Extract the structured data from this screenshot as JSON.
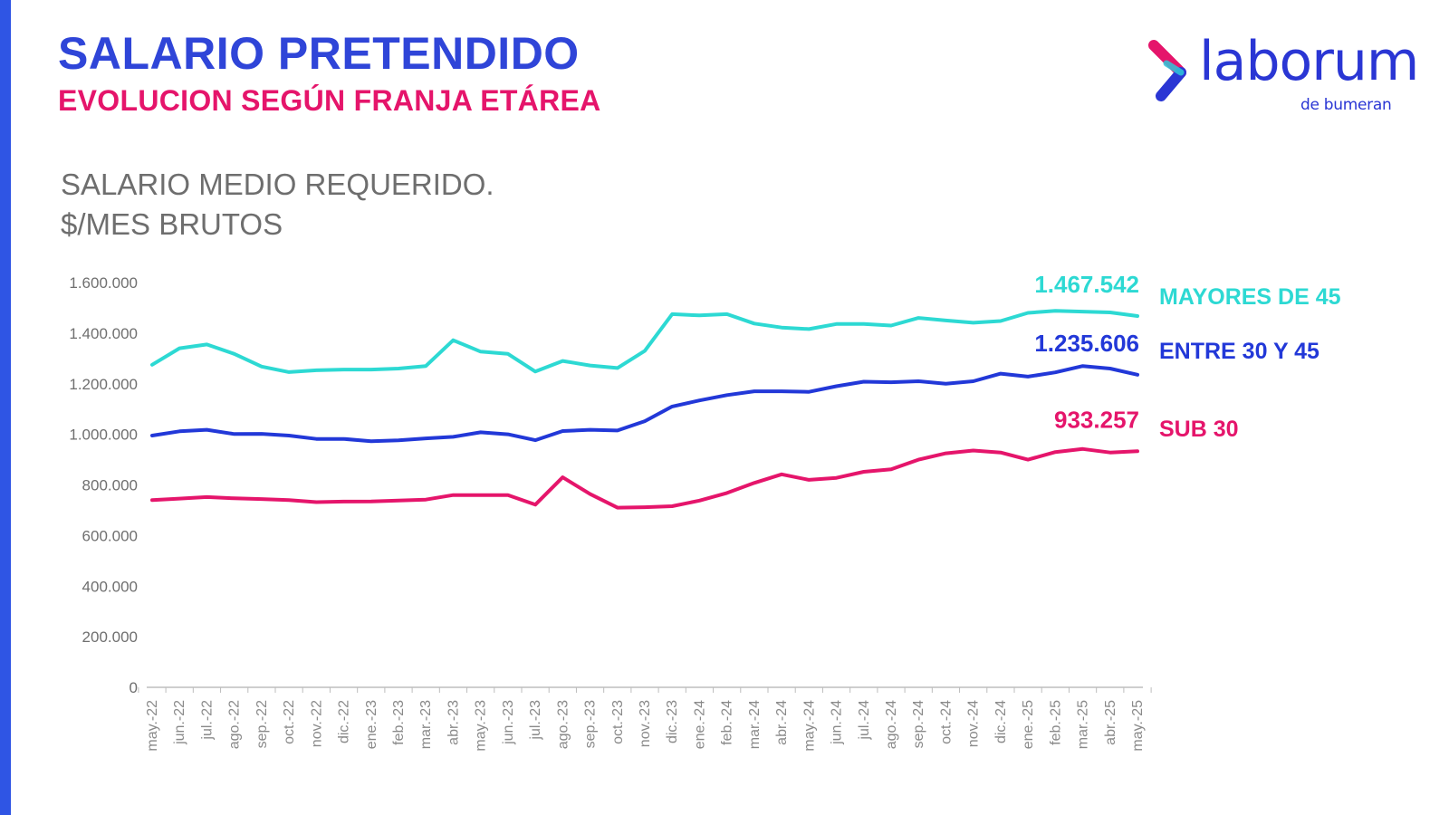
{
  "header": {
    "title": "SALARIO PRETENDIDO",
    "subtitle": "EVOLUCION SEGÚN FRANJA ETÁREA"
  },
  "logo": {
    "word": "laborum",
    "sub": "de bumeran",
    "icon": "chevron-logo-icon",
    "colors": [
      "#e5156b",
      "#2a36d4",
      "#2ec8d9"
    ]
  },
  "colors": {
    "accent_bar": "#2f55e4",
    "title": "#2f45d8",
    "subtitle": "#e5156b"
  },
  "chart_data": {
    "type": "line",
    "title": "SALARIO MEDIO REQUERIDO.",
    "subtitle": "$/MES BRUTOS",
    "xlabel": "",
    "ylabel": "",
    "ylim": [
      0,
      1600000
    ],
    "yticks": [
      0,
      200000,
      400000,
      600000,
      800000,
      1000000,
      1200000,
      1400000,
      1600000
    ],
    "ytick_labels": [
      "0",
      "200.000",
      "400.000",
      "600.000",
      "800.000",
      "1.000.000",
      "1.200.000",
      "1.400.000",
      "1.600.000"
    ],
    "grid": false,
    "legend": "right, at line ends",
    "categories": [
      "may.-22",
      "jun.-22",
      "jul.-22",
      "ago.-22",
      "sep.-22",
      "oct.-22",
      "nov.-22",
      "dic.-22",
      "ene.-23",
      "feb.-23",
      "mar.-23",
      "abr.-23",
      "may.-23",
      "jun.-23",
      "jul.-23",
      "ago.-23",
      "sep.-23",
      "oct.-23",
      "nov.-23",
      "dic.-23",
      "ene.-24",
      "feb.-24",
      "mar.-24",
      "abr.-24",
      "may.-24",
      "jun.-24",
      "jul.-24",
      "ago.-24",
      "sep.-24",
      "oct.-24",
      "nov.-24",
      "dic.-24",
      "ene.-25",
      "feb.-25",
      "mar.-25",
      "abr.-25",
      "may.-25"
    ],
    "series": [
      {
        "name": "MAYORES DE 45",
        "color": "#2dd9d3",
        "end_label": "1.467.542",
        "values": [
          1275000,
          1340000,
          1355000,
          1318000,
          1268000,
          1246000,
          1253000,
          1256000,
          1256000,
          1260000,
          1270000,
          1372000,
          1327000,
          1318000,
          1248000,
          1290000,
          1272000,
          1262000,
          1330000,
          1475000,
          1470000,
          1475000,
          1438000,
          1422000,
          1416000,
          1436000,
          1436000,
          1430000,
          1460000,
          1450000,
          1441000,
          1448000,
          1480000,
          1488000,
          1485000,
          1482000,
          1467542
        ]
      },
      {
        "name": "ENTRE 30 Y 45",
        "color": "#2238d8",
        "end_label": "1.235.606",
        "values": [
          995000,
          1012000,
          1018000,
          1001000,
          1002000,
          995000,
          982000,
          982000,
          973000,
          976000,
          984000,
          990000,
          1008000,
          1000000,
          977000,
          1013000,
          1018000,
          1015000,
          1052000,
          1110000,
          1134000,
          1155000,
          1170000,
          1170000,
          1168000,
          1190000,
          1208000,
          1206000,
          1210000,
          1200000,
          1210000,
          1240000,
          1228000,
          1245000,
          1270000,
          1260000,
          1235606
        ]
      },
      {
        "name": "SUB 30",
        "color": "#e5156b",
        "end_label": "933.257",
        "values": [
          740000,
          746000,
          752000,
          747000,
          744000,
          740000,
          732000,
          734000,
          735000,
          738000,
          742000,
          760000,
          760000,
          760000,
          722000,
          830000,
          764000,
          710000,
          712000,
          716000,
          738000,
          768000,
          808000,
          842000,
          820000,
          828000,
          852000,
          862000,
          900000,
          925000,
          936000,
          928000,
          900000,
          930000,
          942000,
          928000,
          933257
        ]
      }
    ]
  }
}
